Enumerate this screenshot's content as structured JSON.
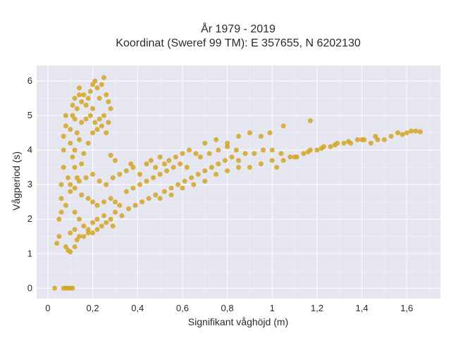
{
  "chart_data": {
    "type": "scatter",
    "title_line1": "År 1979 - 2019",
    "title_line2": "Koordinat (Sweref 99 TM): E 357655, N 6202130",
    "xlabel": "Signifikant våghöjd (m)",
    "ylabel": "Vågperiod (s)",
    "xlim": [
      -0.05,
      1.75
    ],
    "ylim": [
      -0.3,
      6.45
    ],
    "x_ticks": [
      0,
      0.2,
      0.4,
      0.6,
      0.8,
      1.0,
      1.2,
      1.4,
      1.6
    ],
    "x_tick_labels": [
      "0",
      "0,2",
      "0,4",
      "0,6",
      "0,8",
      "1",
      "1,2",
      "1,4",
      "1,6"
    ],
    "y_ticks": [
      0,
      1,
      2,
      3,
      4,
      5,
      6
    ],
    "y_tick_labels": [
      "0",
      "1",
      "2",
      "3",
      "4",
      "5",
      "6"
    ],
    "grid": true,
    "point_color": "#d4a421",
    "plot_background": "#e5e6f0",
    "series": [
      {
        "values_note_free": true,
        "points": [
          [
            0.04,
            1.3
          ],
          [
            0.05,
            1.5
          ],
          [
            0.05,
            2.0
          ],
          [
            0.06,
            2.6
          ],
          [
            0.06,
            3.0
          ],
          [
            0.07,
            3.5
          ],
          [
            0.07,
            4.0
          ],
          [
            0.07,
            4.4
          ],
          [
            0.08,
            4.7
          ],
          [
            0.08,
            5.0
          ],
          [
            0.08,
            1.2
          ],
          [
            0.09,
            1.1
          ],
          [
            0.1,
            1.05
          ],
          [
            0.12,
            1.2
          ],
          [
            0.13,
            1.4
          ],
          [
            0.09,
            3.2
          ],
          [
            0.1,
            4.2
          ],
          [
            0.1,
            4.6
          ],
          [
            0.11,
            5.0
          ],
          [
            0.11,
            5.3
          ],
          [
            0.12,
            5.5
          ],
          [
            0.12,
            4.9
          ],
          [
            0.13,
            5.2
          ],
          [
            0.14,
            5.6
          ],
          [
            0.14,
            5.8
          ],
          [
            0.15,
            5.4
          ],
          [
            0.16,
            5.6
          ],
          [
            0.17,
            5.3
          ],
          [
            0.18,
            5.5
          ],
          [
            0.19,
            5.7
          ],
          [
            0.2,
            5.9
          ],
          [
            0.2,
            5.2
          ],
          [
            0.21,
            6.0
          ],
          [
            0.22,
            5.8
          ],
          [
            0.23,
            5.5
          ],
          [
            0.24,
            5.9
          ],
          [
            0.25,
            6.1
          ],
          [
            0.26,
            5.6
          ],
          [
            0.27,
            5.4
          ],
          [
            0.28,
            5.2
          ],
          [
            0.13,
            4.5
          ],
          [
            0.15,
            4.8
          ],
          [
            0.17,
            4.9
          ],
          [
            0.19,
            5.0
          ],
          [
            0.21,
            4.8
          ],
          [
            0.23,
            4.9
          ],
          [
            0.25,
            5.0
          ],
          [
            0.27,
            4.8
          ],
          [
            0.12,
            4.0
          ],
          [
            0.14,
            4.3
          ],
          [
            0.11,
            3.8
          ],
          [
            0.12,
            3.5
          ],
          [
            0.13,
            3.2
          ],
          [
            0.15,
            3.6
          ],
          [
            0.16,
            3.9
          ],
          [
            0.18,
            4.2
          ],
          [
            0.2,
            4.5
          ],
          [
            0.22,
            4.6
          ],
          [
            0.24,
            4.7
          ],
          [
            0.26,
            4.5
          ],
          [
            0.06,
            2.2
          ],
          [
            0.08,
            2.4
          ],
          [
            0.1,
            2.8
          ],
          [
            0.12,
            2.2
          ],
          [
            0.14,
            2.0
          ],
          [
            0.16,
            1.8
          ],
          [
            0.18,
            1.7
          ],
          [
            0.2,
            1.9
          ],
          [
            0.22,
            2.0
          ],
          [
            0.25,
            2.1
          ],
          [
            0.1,
            1.6
          ],
          [
            0.12,
            1.7
          ],
          [
            0.14,
            1.5
          ],
          [
            0.16,
            1.5
          ],
          [
            0.18,
            1.6
          ],
          [
            0.2,
            1.6
          ],
          [
            0.22,
            1.7
          ],
          [
            0.24,
            1.8
          ],
          [
            0.26,
            1.9
          ],
          [
            0.28,
            2.0
          ],
          [
            0.1,
            3.0
          ],
          [
            0.12,
            2.9
          ],
          [
            0.15,
            2.7
          ],
          [
            0.18,
            2.6
          ],
          [
            0.2,
            2.5
          ],
          [
            0.22,
            2.4
          ],
          [
            0.25,
            2.5
          ],
          [
            0.28,
            2.6
          ],
          [
            0.3,
            2.5
          ],
          [
            0.32,
            2.4
          ],
          [
            0.14,
            3.1
          ],
          [
            0.17,
            3.2
          ],
          [
            0.2,
            3.3
          ],
          [
            0.23,
            3.1
          ],
          [
            0.26,
            3.0
          ],
          [
            0.29,
            3.2
          ],
          [
            0.32,
            3.3
          ],
          [
            0.35,
            3.4
          ],
          [
            0.38,
            3.5
          ],
          [
            0.41,
            3.3
          ],
          [
            0.3,
            2.2
          ],
          [
            0.33,
            2.1
          ],
          [
            0.36,
            2.3
          ],
          [
            0.39,
            2.4
          ],
          [
            0.42,
            2.5
          ],
          [
            0.45,
            2.6
          ],
          [
            0.48,
            2.7
          ],
          [
            0.5,
            2.6
          ],
          [
            0.52,
            2.8
          ],
          [
            0.55,
            2.9
          ],
          [
            0.35,
            2.8
          ],
          [
            0.38,
            2.9
          ],
          [
            0.41,
            3.0
          ],
          [
            0.44,
            3.1
          ],
          [
            0.47,
            3.2
          ],
          [
            0.5,
            3.3
          ],
          [
            0.53,
            3.4
          ],
          [
            0.56,
            3.5
          ],
          [
            0.59,
            3.6
          ],
          [
            0.62,
            3.5
          ],
          [
            0.44,
            3.6
          ],
          [
            0.46,
            3.7
          ],
          [
            0.48,
            3.5
          ],
          [
            0.5,
            3.8
          ],
          [
            0.52,
            3.6
          ],
          [
            0.54,
            3.7
          ],
          [
            0.57,
            3.8
          ],
          [
            0.6,
            3.9
          ],
          [
            0.63,
            4.0
          ],
          [
            0.66,
            3.9
          ],
          [
            0.58,
            3.0
          ],
          [
            0.61,
            3.1
          ],
          [
            0.64,
            3.2
          ],
          [
            0.67,
            3.3
          ],
          [
            0.7,
            3.4
          ],
          [
            0.73,
            3.5
          ],
          [
            0.76,
            3.6
          ],
          [
            0.79,
            3.7
          ],
          [
            0.82,
            3.8
          ],
          [
            0.85,
            3.7
          ],
          [
            0.55,
            2.7
          ],
          [
            0.6,
            2.9
          ],
          [
            0.65,
            3.0
          ],
          [
            0.7,
            3.1
          ],
          [
            0.75,
            3.3
          ],
          [
            0.8,
            3.4
          ],
          [
            0.85,
            3.5
          ],
          [
            0.9,
            3.5
          ],
          [
            0.95,
            3.6
          ],
          [
            1.0,
            3.7
          ],
          [
            0.68,
            3.8
          ],
          [
            0.72,
            3.9
          ],
          [
            0.76,
            4.0
          ],
          [
            0.8,
            4.1
          ],
          [
            0.84,
            4.0
          ],
          [
            0.88,
            3.9
          ],
          [
            0.92,
            3.9
          ],
          [
            0.96,
            4.0
          ],
          [
            1.0,
            4.0
          ],
          [
            1.04,
            3.9
          ],
          [
            0.7,
            4.2
          ],
          [
            0.75,
            4.3
          ],
          [
            0.8,
            4.2
          ],
          [
            0.85,
            4.4
          ],
          [
            0.9,
            4.5
          ],
          [
            0.95,
            4.4
          ],
          [
            0.99,
            4.5
          ],
          [
            1.05,
            4.7
          ],
          [
            1.17,
            4.85
          ],
          [
            1.1,
            3.8
          ],
          [
            1.02,
            3.5
          ],
          [
            1.05,
            3.7
          ],
          [
            1.08,
            3.8
          ],
          [
            1.11,
            3.8
          ],
          [
            1.14,
            3.9
          ],
          [
            1.17,
            4.0
          ],
          [
            1.2,
            4.0
          ],
          [
            1.23,
            4.1
          ],
          [
            1.26,
            4.1
          ],
          [
            1.29,
            4.2
          ],
          [
            1.32,
            4.2
          ],
          [
            1.35,
            4.2
          ],
          [
            1.38,
            4.3
          ],
          [
            1.41,
            4.3
          ],
          [
            1.44,
            4.2
          ],
          [
            1.47,
            4.3
          ],
          [
            1.5,
            4.3
          ],
          [
            1.53,
            4.4
          ],
          [
            1.56,
            4.5
          ],
          [
            1.58,
            4.45
          ],
          [
            1.6,
            4.5
          ],
          [
            1.62,
            4.55
          ],
          [
            1.64,
            4.55
          ],
          [
            1.66,
            4.53
          ],
          [
            1.46,
            4.4
          ],
          [
            1.4,
            4.3
          ],
          [
            1.34,
            4.25
          ],
          [
            1.28,
            4.15
          ],
          [
            1.22,
            4.05
          ],
          [
            1.16,
            3.95
          ],
          [
            0.07,
            0.0
          ],
          [
            0.08,
            0.0
          ],
          [
            0.09,
            0.0
          ],
          [
            0.1,
            0.0
          ],
          [
            0.11,
            0.0
          ],
          [
            0.03,
            0.0
          ],
          [
            0.37,
            3.6
          ],
          [
            0.3,
            3.7
          ],
          [
            0.28,
            3.85
          ],
          [
            0.29,
            1.8
          ]
        ]
      }
    ]
  }
}
